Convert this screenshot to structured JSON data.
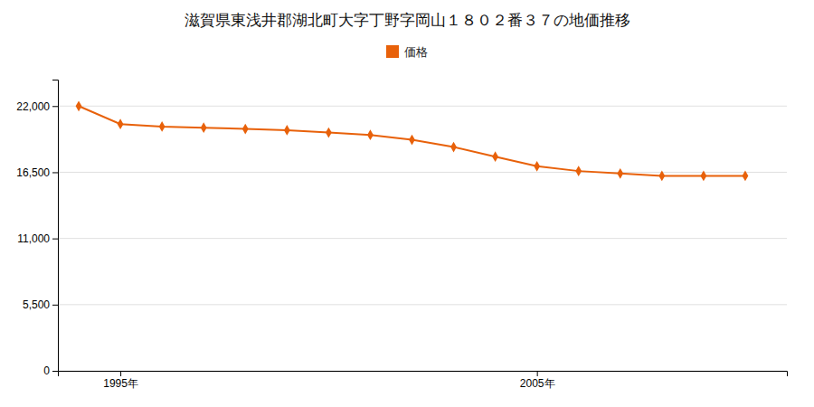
{
  "chart_data": {
    "type": "line",
    "title": "滋賀県東浅井郡湖北町大字丁野字岡山１８０２番３７の地価推移",
    "x": [
      1994,
      1995,
      1996,
      1997,
      1998,
      1999,
      2000,
      2001,
      2002,
      2003,
      2004,
      2005,
      2006,
      2007,
      2008,
      2009,
      2010
    ],
    "series": [
      {
        "name": "価格",
        "color": "#e8610a",
        "marker": "diamond",
        "values": [
          22000,
          20500,
          20300,
          20200,
          20100,
          20000,
          19800,
          19600,
          19200,
          18600,
          17800,
          17000,
          16600,
          16400,
          16200,
          16200,
          16200
        ]
      }
    ],
    "xlim": [
      1993.5,
      2011
    ],
    "xticks": [
      {
        "value": 1995,
        "label": "1995年"
      },
      {
        "value": 2005,
        "label": "2005年"
      }
    ],
    "ylim": [
      0,
      24200
    ],
    "yticks": [
      0,
      {
        "value": 5500,
        "label": "5,500"
      },
      {
        "value": 11000,
        "label": "11,000"
      },
      {
        "value": 16500,
        "label": "16,500"
      },
      {
        "value": 22000,
        "label": "22,000"
      }
    ],
    "grid": true,
    "legend": "top"
  }
}
